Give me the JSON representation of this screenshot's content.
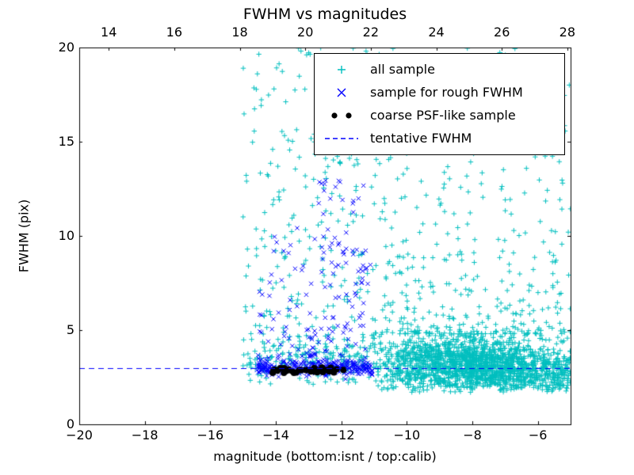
{
  "chart_data": {
    "type": "scatter",
    "title": "FWHM vs magnitudes",
    "xlabel": "magnitude (bottom:isnt / top:calib)",
    "ylabel": "FWHM (pix)",
    "grid": false,
    "legend_position": "upper right",
    "x_bottom": {
      "range": [
        -20,
        -5
      ],
      "tick_values": [
        -20,
        -18,
        -16,
        -14,
        -12,
        -10,
        -8,
        -6
      ],
      "tick_labels": [
        "−20",
        "−18",
        "−16",
        "−14",
        "−12",
        "−10",
        "−8",
        "−6"
      ]
    },
    "x_top": {
      "range": [
        13.1,
        28.1
      ],
      "tick_values": [
        14,
        16,
        18,
        20,
        22,
        24,
        26,
        28
      ],
      "tick_labels": [
        "14",
        "16",
        "18",
        "20",
        "22",
        "24",
        "26",
        "28"
      ]
    },
    "y_axis": {
      "range": [
        0,
        20
      ],
      "tick_values": [
        0,
        5,
        10,
        15,
        20
      ],
      "tick_labels": [
        "0",
        "5",
        "10",
        "15",
        "20"
      ]
    },
    "seed": 42,
    "tentative": {
      "value": 3.0,
      "color": "#0000ff",
      "style": "dashed"
    },
    "series": [
      {
        "name": "all sample",
        "marker": "plus",
        "color": "#00bfbf",
        "clusters": [
          {
            "n": 1500,
            "x": {
              "type": "gauss",
              "mean": -8.3,
              "sd": 1.6,
              "min": -11,
              "max": -5
            },
            "y": {
              "type": "gauss",
              "mean": 3.2,
              "sd": 0.75,
              "min": 1.7,
              "max": 6.2
            }
          },
          {
            "n": 420,
            "x": {
              "type": "uniform",
              "min": -8.2,
              "max": -5
            },
            "y": {
              "type": "gauss",
              "mean": 2.7,
              "sd": 0.55,
              "min": 1.7,
              "max": 4.5
            }
          },
          {
            "n": 400,
            "x": {
              "type": "uniform",
              "min": -11,
              "max": -5
            },
            "y": {
              "type": "pow",
              "min": 4.8,
              "max": 20,
              "p": 2.1
            }
          },
          {
            "n": 170,
            "x": {
              "type": "uniform",
              "min": -15,
              "max": -11
            },
            "y": {
              "type": "gauss",
              "mean": 3.3,
              "sd": 0.6,
              "min": 2.1,
              "max": 5
            }
          },
          {
            "n": 260,
            "x": {
              "type": "uniform",
              "min": -15,
              "max": -11
            },
            "y": {
              "type": "pow",
              "min": 3.5,
              "max": 20,
              "p": 1.5
            }
          }
        ]
      },
      {
        "name": "sample for rough FWHM",
        "marker": "cross",
        "color": "#0000ff",
        "clusters": [
          {
            "n": 300,
            "x": {
              "type": "uniform",
              "min": -14.6,
              "max": -11.05
            },
            "y": {
              "type": "gauss",
              "mean": 3.0,
              "sd": 0.22,
              "min": 2.35,
              "max": 3.8
            }
          },
          {
            "n": 85,
            "x": {
              "type": "uniform",
              "min": -12.7,
              "max": -11.1
            },
            "y": {
              "type": "uniform",
              "min": 3.6,
              "max": 13.0
            }
          },
          {
            "n": 70,
            "x": {
              "type": "uniform",
              "min": -14.5,
              "max": -12.4
            },
            "y": {
              "type": "pow",
              "min": 3.6,
              "max": 10.5,
              "p": 1.7
            }
          }
        ]
      },
      {
        "name": "coarse PSF-like sample",
        "marker": "dot",
        "color": "#000000",
        "clusters": [
          {
            "n": 36,
            "x": {
              "type": "uniform",
              "min": -14.25,
              "max": -11.85
            },
            "y": {
              "type": "gauss",
              "mean": 2.85,
              "sd": 0.1,
              "min": 2.6,
              "max": 3.05
            }
          }
        ]
      }
    ],
    "legend": [
      {
        "label": "all sample"
      },
      {
        "label": "sample for rough FWHM"
      },
      {
        "label": "coarse PSF-like sample"
      },
      {
        "label": "tentative FWHM"
      }
    ]
  }
}
